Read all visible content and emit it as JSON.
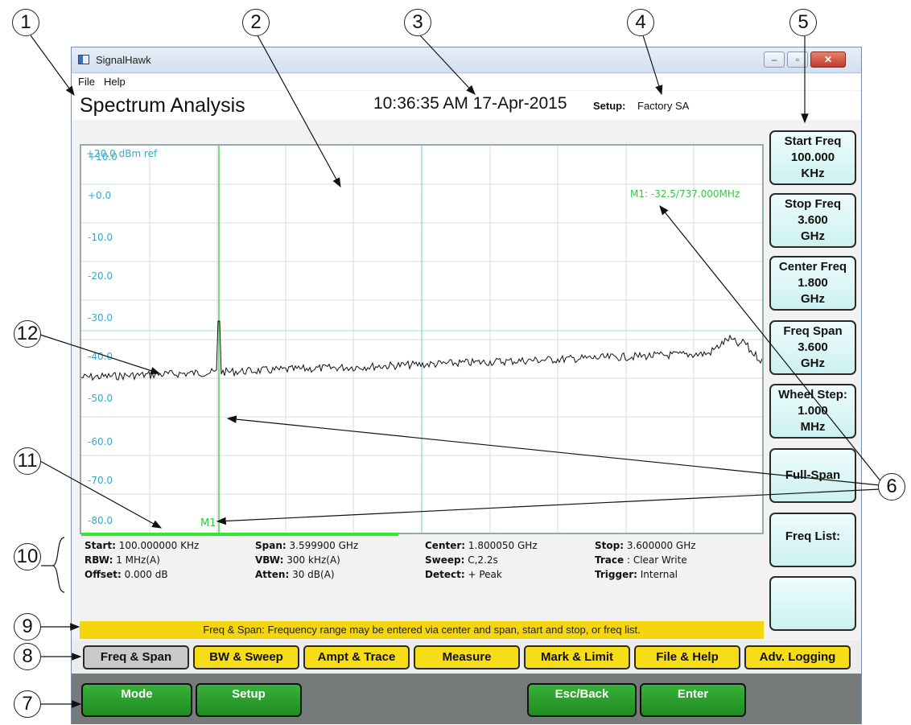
{
  "callouts": [
    "1",
    "2",
    "3",
    "4",
    "5",
    "6",
    "7",
    "8",
    "9",
    "10",
    "11",
    "12"
  ],
  "window": {
    "app_title": "SignalHawk",
    "icon": "app-window-icon",
    "controls": {
      "minimize": "–",
      "maximize": "▫",
      "close": "✕"
    }
  },
  "menu": {
    "file": "File",
    "help": "Help"
  },
  "header": {
    "mode_title": "Spectrum Analysis",
    "clock": "10:36:35 AM 17-Apr-2015",
    "setup_label": "Setup:",
    "setup_value": "Factory SA"
  },
  "plot": {
    "ref_label": "+20.0 dBm ref",
    "y_labels": [
      "+10.0",
      "+0.0",
      "-10.0",
      "-20.0",
      "-30.0",
      "-40.0",
      "-50.0",
      "-60.0",
      "-70.0",
      "-80.0"
    ],
    "marker_readout": "M1: -32.5/737.000MHz",
    "marker_name": "M1",
    "colors": {
      "grid": "#d6dcdc",
      "trace": "#111111",
      "marker": "#2ecc40",
      "center_line": "#7fd4dc",
      "threshold": "#a8e6a8"
    }
  },
  "info": {
    "row1": [
      {
        "label": "Start:",
        "value": "100.000000 KHz"
      },
      {
        "label": "Span:",
        "value": "3.599900 GHz"
      },
      {
        "label": "Center:",
        "value": "1.800050 GHz"
      },
      {
        "label": "Stop:",
        "value": "3.600000 GHz"
      }
    ],
    "row2": [
      {
        "label": "RBW:",
        "value": "1 MHz(A)"
      },
      {
        "label": "VBW:",
        "value": "300 kHz(A)"
      },
      {
        "label": "Sweep:",
        "value": "C,2.2s"
      },
      {
        "label": "Trace",
        "value": ": Clear Write"
      }
    ],
    "row3": [
      {
        "label": "Offset:",
        "value": " 0.000 dB"
      },
      {
        "label": "Atten:",
        "value": "30 dB(A)"
      },
      {
        "label": "Detect:",
        "value": "+ Peak"
      },
      {
        "label": "Trigger:",
        "value": "Internal"
      }
    ]
  },
  "status_line": "Freq & Span: Frequency range may be entered via center and span, start and stop, or freq list.",
  "softkeys": [
    {
      "line1": "Start Freq",
      "line2": "100.000",
      "line3": "KHz"
    },
    {
      "line1": "Stop Freq",
      "line2": "3.600",
      "line3": "GHz"
    },
    {
      "line1": "Center Freq",
      "line2": "1.800",
      "line3": "GHz"
    },
    {
      "line1": "Freq Span",
      "line2": "3.600",
      "line3": "GHz"
    },
    {
      "line1": "Wheel Step:",
      "line2": "1.000",
      "line3": "MHz"
    },
    {
      "line1": "Full-Span",
      "line2": "",
      "line3": ""
    },
    {
      "line1": "Freq List:",
      "line2": "",
      "line3": ""
    },
    {
      "line1": "",
      "line2": "",
      "line3": ""
    }
  ],
  "tabs": [
    "Freq & Span",
    "BW & Sweep",
    "Ampt &  Trace",
    "Measure",
    "Mark & Limit",
    "File & Help",
    "Adv. Logging"
  ],
  "buttons": {
    "mode": "Mode",
    "setup": "Setup",
    "esc": "Esc/Back",
    "enter": "Enter"
  }
}
